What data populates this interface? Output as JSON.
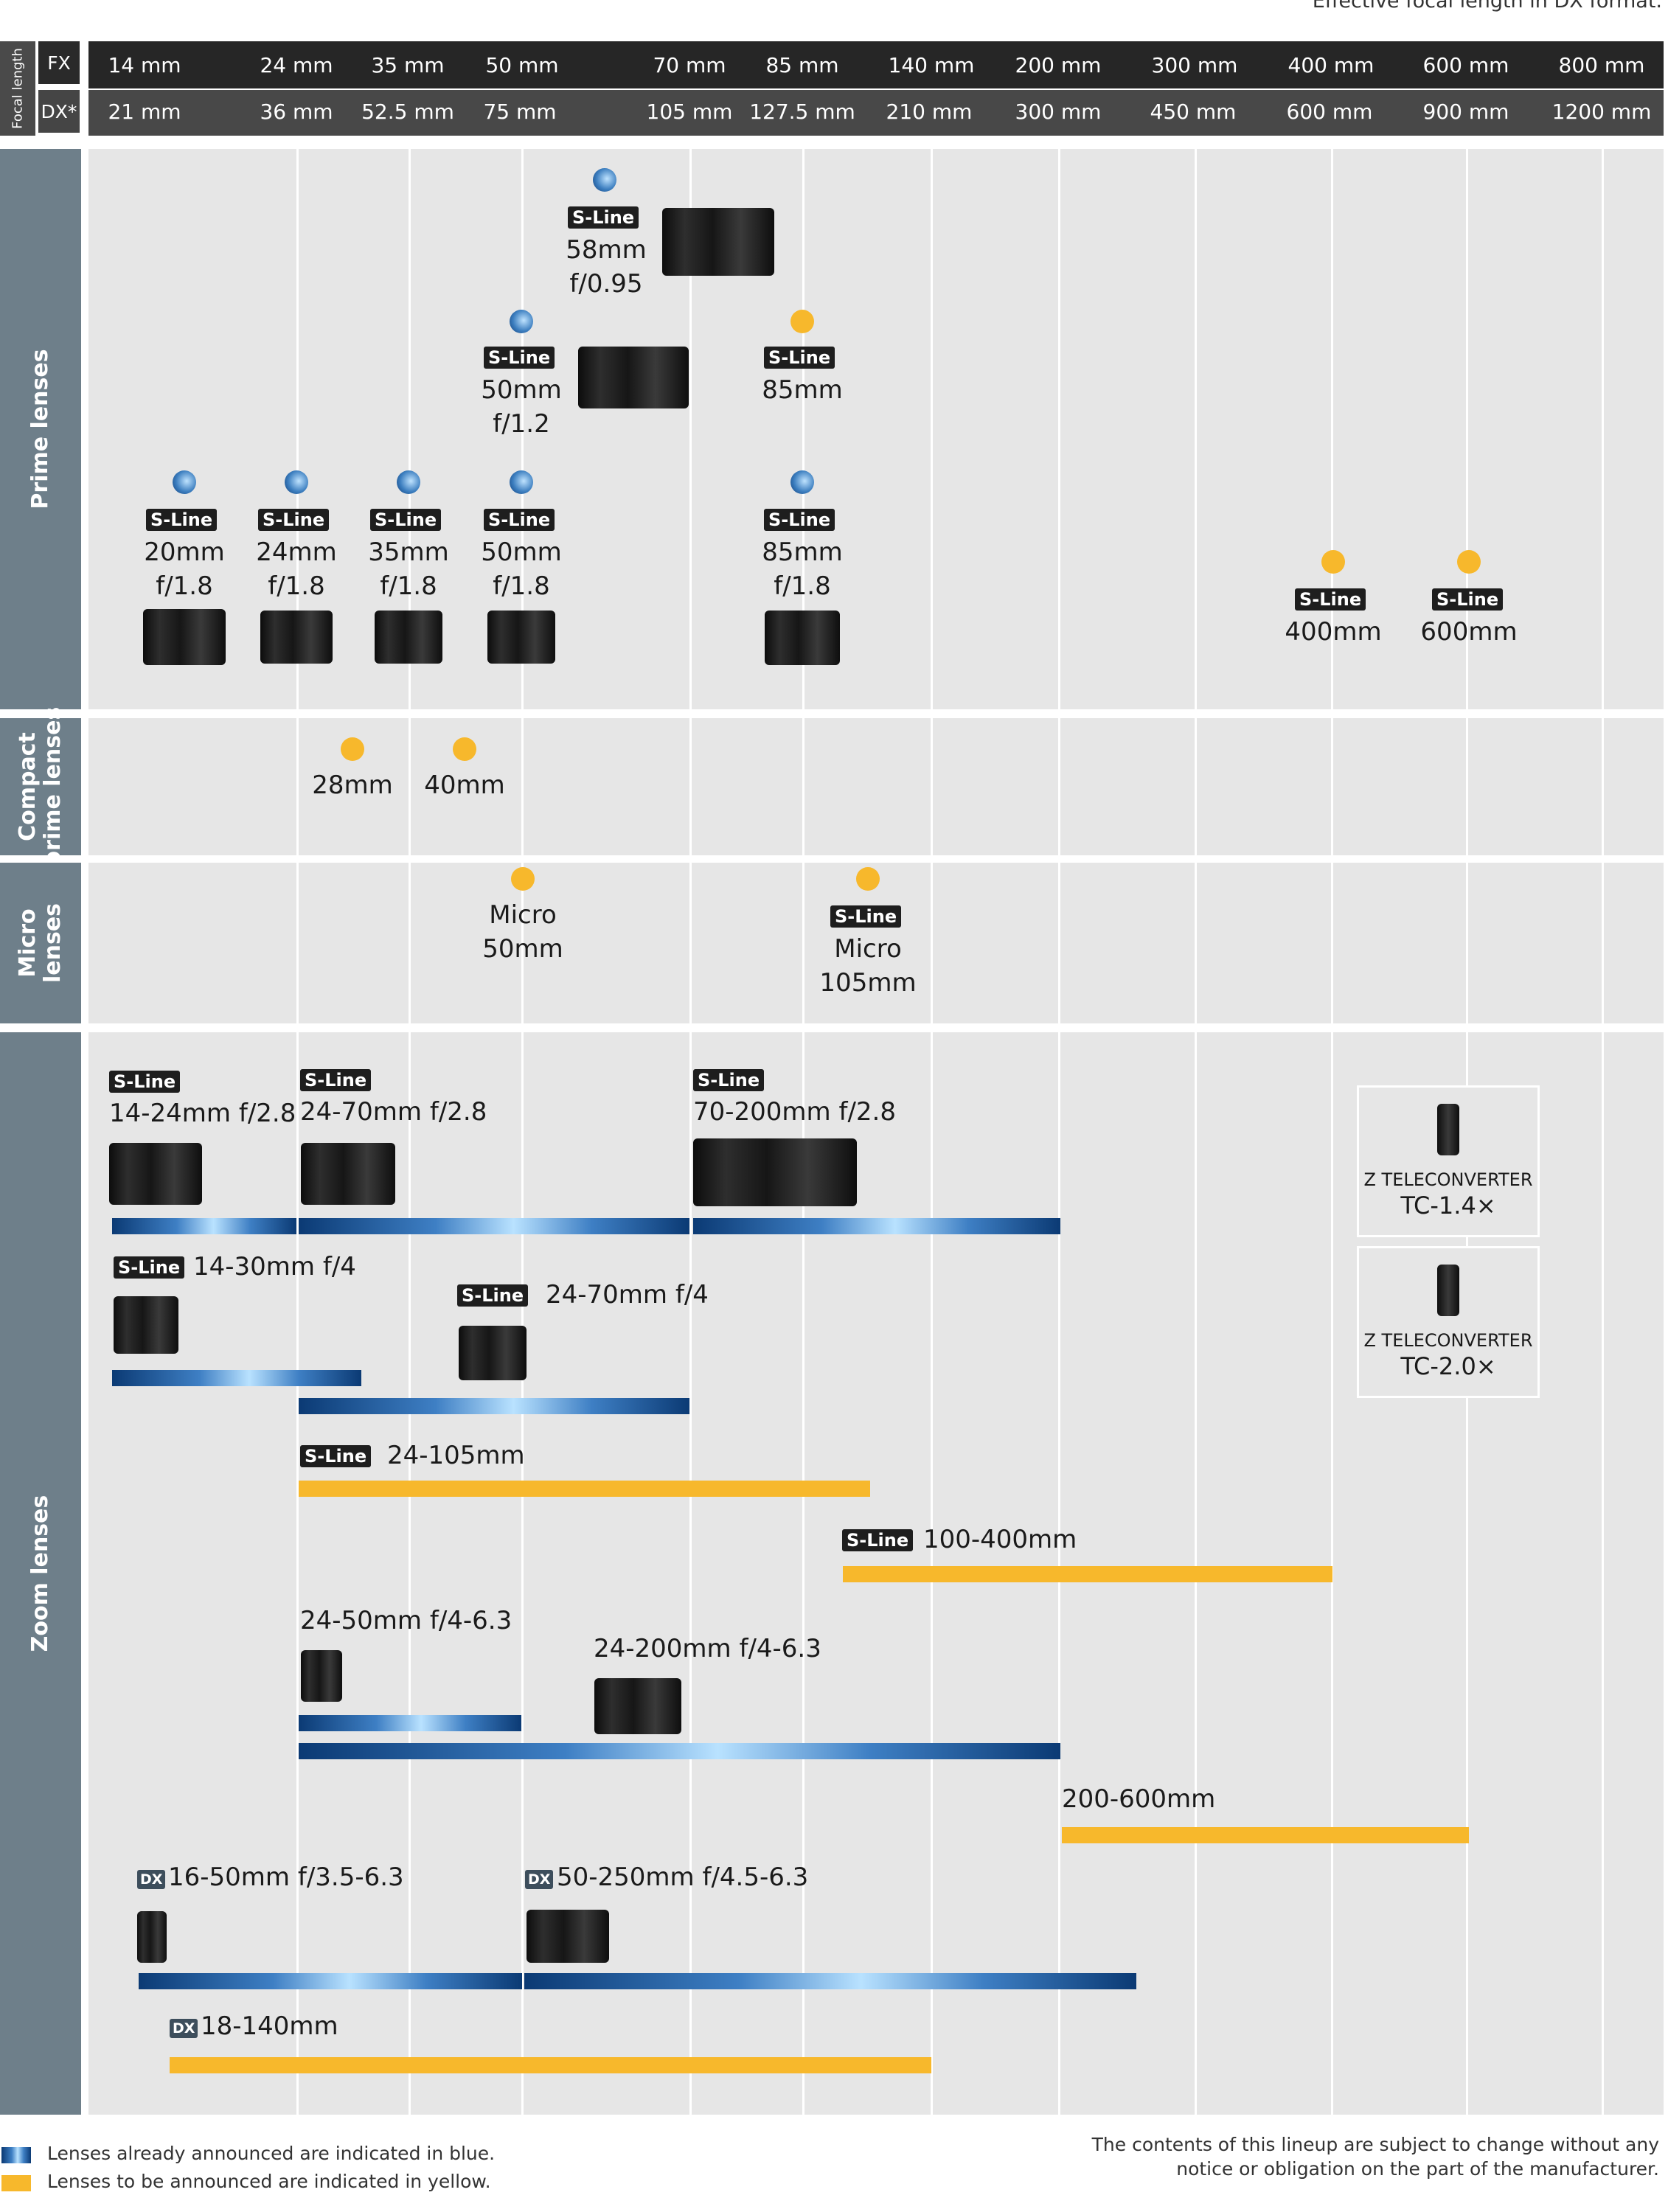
{
  "header": {
    "note": "Effective focal length in DX format.",
    "focal_label": "Focal length",
    "fx_tag": "FX",
    "dx_tag": "DX*",
    "fx": [
      "14 mm",
      "24 mm",
      "35 mm",
      "50 mm",
      "70 mm",
      "85 mm",
      "140 mm",
      "200 mm",
      "300 mm",
      "400 mm",
      "600 mm",
      "800 mm"
    ],
    "dx": [
      "21 mm",
      "36 mm",
      "52.5 mm",
      "75 mm",
      "105 mm",
      "127.5 mm",
      "210 mm",
      "300 mm",
      "450 mm",
      "600 mm",
      "900 mm",
      "1200 mm"
    ]
  },
  "sections": {
    "prime": "Prime lenses",
    "compact_1": "Compact",
    "compact_2": "prime lenses",
    "micro_1": "Micro",
    "micro_2": "lenses",
    "zoom": "Zoom lenses"
  },
  "badges": {
    "sline": "S-Line",
    "dx": "DX"
  },
  "prime": {
    "l58": [
      "58mm",
      "f/0.95"
    ],
    "l50_12": [
      "50mm",
      "f/1.2"
    ],
    "l85_y": "85mm",
    "l20": [
      "20mm",
      "f/1.8"
    ],
    "l24": [
      "24mm",
      "f/1.8"
    ],
    "l35": [
      "35mm",
      "f/1.8"
    ],
    "l50": [
      "50mm",
      "f/1.8"
    ],
    "l85": [
      "85mm",
      "f/1.8"
    ],
    "l400": "400mm",
    "l600": "600mm"
  },
  "compact": {
    "l28": "28mm",
    "l40": "40mm"
  },
  "micro": {
    "l50": [
      "Micro",
      "50mm"
    ],
    "l105": [
      "Micro",
      "105mm"
    ]
  },
  "zoom": {
    "z14_24": "14-24mm f/2.8",
    "z24_70_28": "24-70mm f/2.8",
    "z70_200": "70-200mm f/2.8",
    "z14_30": "14-30mm f/4",
    "z24_70_4": "24-70mm f/4",
    "z24_105": "24-105mm",
    "z100_400": "100-400mm",
    "z24_50": "24-50mm f/4-6.3",
    "z24_200": "24-200mm f/4-6.3",
    "z200_600": "200-600mm",
    "z16_50": "16-50mm f/3.5-6.3",
    "z50_250": "50-250mm f/4.5-6.3",
    "z18_140": "18-140mm"
  },
  "teleconverters": [
    {
      "small": "Z TELECONVERTER",
      "big": "TC-1.4×"
    },
    {
      "small": "Z TELECONVERTER",
      "big": "TC-2.0×"
    }
  ],
  "legend": {
    "blue": "Lenses already announced are indicated in blue.",
    "yellow": "Lenses to be announced are indicated in yellow."
  },
  "disclaimer": [
    "The contents of this lineup are subject to change without any",
    "notice or obligation on the part of the manufacturer."
  ],
  "colors": {
    "announced": "#1f5fa6",
    "to_be_announced": "#f7b82c",
    "section_label": "#6e7f8a",
    "header": "#262626"
  }
}
